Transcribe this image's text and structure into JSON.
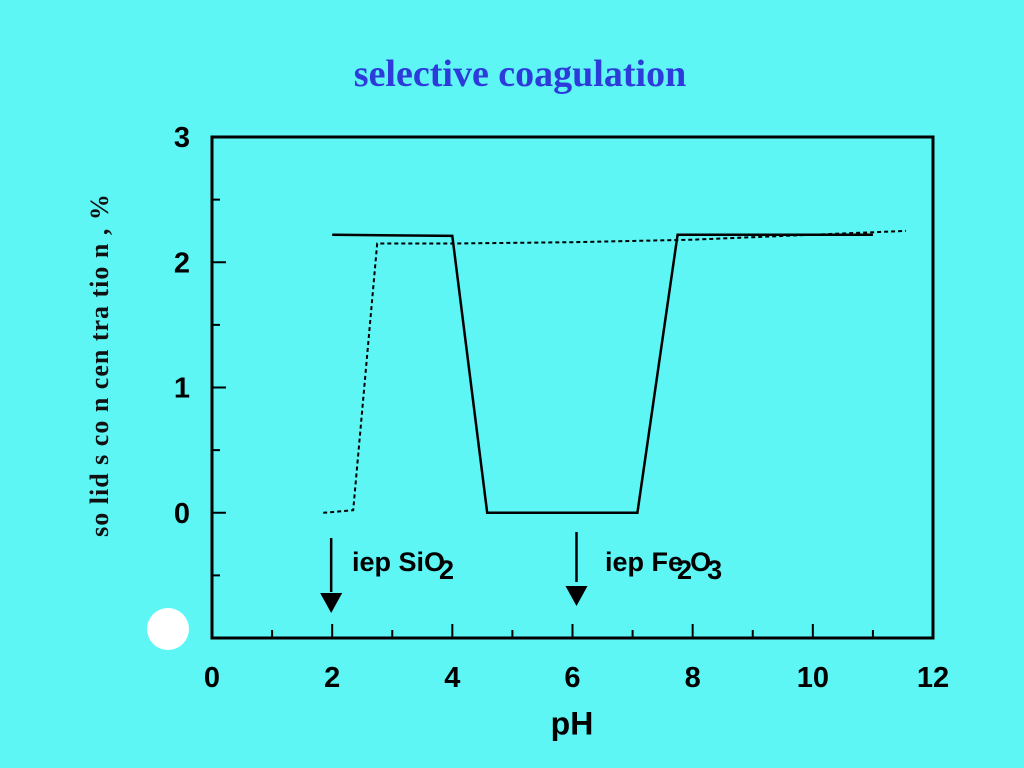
{
  "chart_data": {
    "type": "line",
    "title": "selective coagulation",
    "xlabel": "pH",
    "ylabel": "so lid s co n cen tra tio n ,  %",
    "xlim": [
      0,
      12
    ],
    "ylim": [
      -1,
      3
    ],
    "x_ticks": [
      "0",
      "2",
      "4",
      "6",
      "8",
      "10",
      "12"
    ],
    "y_ticks": [
      "0",
      "1",
      "2",
      "3"
    ],
    "grid": false,
    "series": [
      {
        "style": "solid",
        "color": "#000000",
        "points": [
          [
            2.0,
            2.22
          ],
          [
            4.0,
            2.21
          ],
          [
            4.58,
            0.0
          ],
          [
            7.08,
            0.0
          ],
          [
            7.75,
            2.22
          ],
          [
            9.5,
            2.22
          ],
          [
            11.0,
            2.22
          ]
        ]
      },
      {
        "style": "dotted",
        "color": "#000000",
        "points": [
          [
            1.85,
            0.0
          ],
          [
            2.35,
            0.02
          ],
          [
            2.75,
            2.15
          ],
          [
            4.0,
            2.15
          ],
          [
            6.0,
            2.16
          ],
          [
            8.0,
            2.18
          ],
          [
            10.0,
            2.22
          ],
          [
            11.55,
            2.25
          ]
        ]
      }
    ],
    "annotations": [
      {
        "arrow_x": 2.0,
        "label": "iep SiO",
        "subscript": "2"
      },
      {
        "arrow_x": 6.0,
        "label": "iep Fe",
        "subscript": "2",
        "label2": "O",
        "subscript2": "3"
      }
    ]
  },
  "colors": {
    "background": "#5EF5F5",
    "title": "#2E3BDB",
    "plot": "#000000"
  }
}
